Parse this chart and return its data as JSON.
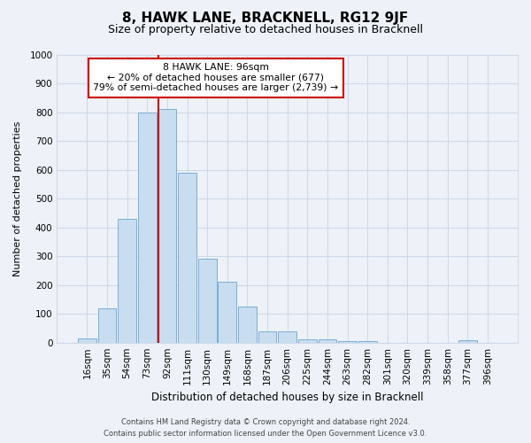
{
  "title": "8, HAWK LANE, BRACKNELL, RG12 9JF",
  "subtitle": "Size of property relative to detached houses in Bracknell",
  "xlabel": "Distribution of detached houses by size in Bracknell",
  "ylabel": "Number of detached properties",
  "bar_labels": [
    "16sqm",
    "35sqm",
    "54sqm",
    "73sqm",
    "92sqm",
    "111sqm",
    "130sqm",
    "149sqm",
    "168sqm",
    "187sqm",
    "206sqm",
    "225sqm",
    "244sqm",
    "263sqm",
    "282sqm",
    "301sqm",
    "320sqm",
    "339sqm",
    "358sqm",
    "377sqm",
    "396sqm"
  ],
  "bar_values": [
    15,
    120,
    430,
    800,
    810,
    590,
    290,
    210,
    125,
    40,
    40,
    12,
    10,
    5,
    5,
    0,
    0,
    0,
    0,
    8,
    0
  ],
  "bar_color": "#c8ddf0",
  "bar_edge_color": "#7aafd4",
  "vline_index": 4,
  "vline_color": "#cc0000",
  "ylim": [
    0,
    1000
  ],
  "yticks": [
    0,
    100,
    200,
    300,
    400,
    500,
    600,
    700,
    800,
    900,
    1000
  ],
  "annotation_line1": "8 HAWK LANE: 96sqm",
  "annotation_line2": "← 20% of detached houses are smaller (677)",
  "annotation_line3": "79% of semi-detached houses are larger (2,739) →",
  "annotation_box_color": "#ffffff",
  "annotation_box_edge": "#cc0000",
  "footer1": "Contains HM Land Registry data © Crown copyright and database right 2024.",
  "footer2": "Contains public sector information licensed under the Open Government Licence v3.0.",
  "background_color": "#eef2f8",
  "grid_color": "#d0d8e8",
  "title_fontsize": 11,
  "subtitle_fontsize": 9
}
